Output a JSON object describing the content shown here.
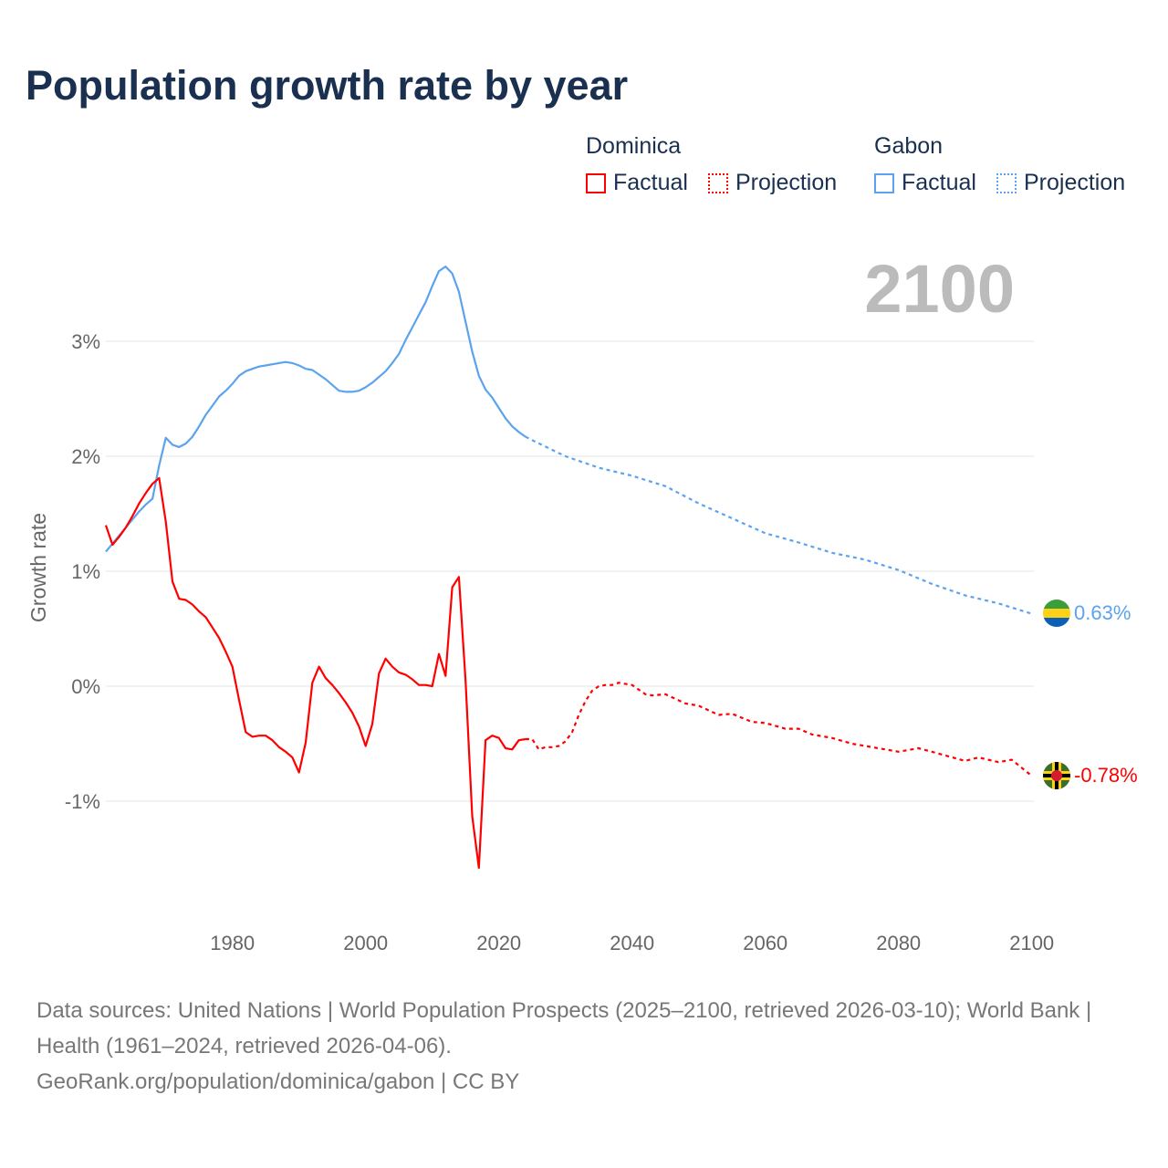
{
  "title": "Population growth rate by year",
  "legend": {
    "groups": [
      {
        "name": "Dominica",
        "factual": "Factual",
        "projection": "Projection",
        "color": "#ff0000"
      },
      {
        "name": "Gabon",
        "factual": "Factual",
        "projection": "Projection",
        "color": "#5ba3ee"
      }
    ]
  },
  "year_label": "2100",
  "footer": {
    "sources": "Data sources: United Nations | World Population Prospects (2025–2100, retrieved 2026-03-10); World Bank | Health (1961–2024, retrieved 2026-04-06).",
    "credit": "GeoRank.org/population/dominica/gabon | CC BY"
  },
  "chart_data": {
    "type": "line",
    "title": "Population growth rate by year",
    "xlabel": "",
    "ylabel": "Growth rate",
    "xlim": [
      1961,
      2100
    ],
    "ylim": [
      -1.9,
      3.8
    ],
    "x_ticks": [
      1980,
      2000,
      2020,
      2040,
      2060,
      2080,
      2100
    ],
    "x_tick_labels": [
      "1980",
      "2000",
      "2020",
      "2040",
      "2060",
      "2080",
      "2100"
    ],
    "y_ticks": [
      3,
      2,
      1,
      0,
      -1
    ],
    "y_tick_labels": [
      "3%",
      "2%",
      "1%",
      "0%",
      "-1%"
    ],
    "grid": true,
    "legend_placement": "top-right",
    "series": [
      {
        "name": "Gabon Factual",
        "color": "#5ba3ee",
        "dashed": false,
        "x": [
          1961,
          1962,
          1963,
          1964,
          1965,
          1966,
          1967,
          1968,
          1969,
          1970,
          1971,
          1972,
          1973,
          1974,
          1975,
          1976,
          1977,
          1978,
          1979,
          1980,
          1981,
          1982,
          1983,
          1984,
          1985,
          1986,
          1987,
          1988,
          1989,
          1990,
          1991,
          1992,
          1993,
          1994,
          1995,
          1996,
          1997,
          1998,
          1999,
          2000,
          2001,
          2002,
          2003,
          2004,
          2005,
          2006,
          2007,
          2008,
          2009,
          2010,
          2011,
          2012,
          2013,
          2014,
          2015,
          2016,
          2017,
          2018,
          2019,
          2020,
          2021,
          2022,
          2023,
          2024
        ],
        "y": [
          1.17,
          1.24,
          1.31,
          1.38,
          1.45,
          1.52,
          1.58,
          1.63,
          1.92,
          2.16,
          2.1,
          2.08,
          2.11,
          2.17,
          2.26,
          2.36,
          2.44,
          2.52,
          2.57,
          2.63,
          2.7,
          2.74,
          2.76,
          2.78,
          2.79,
          2.8,
          2.81,
          2.82,
          2.81,
          2.79,
          2.76,
          2.75,
          2.71,
          2.67,
          2.62,
          2.57,
          2.56,
          2.56,
          2.57,
          2.6,
          2.64,
          2.69,
          2.74,
          2.81,
          2.89,
          3.01,
          3.12,
          3.23,
          3.34,
          3.48,
          3.61,
          3.65,
          3.59,
          3.43,
          3.17,
          2.91,
          2.7,
          2.58,
          2.51,
          2.42,
          2.33,
          2.26,
          2.21,
          2.17
        ]
      },
      {
        "name": "Gabon Projection",
        "color": "#5ba3ee",
        "dashed": true,
        "x": [
          2024,
          2025,
          2030,
          2035,
          2040,
          2045,
          2050,
          2055,
          2060,
          2065,
          2070,
          2075,
          2080,
          2085,
          2090,
          2095,
          2100
        ],
        "y": [
          2.17,
          2.14,
          2.0,
          1.9,
          1.83,
          1.74,
          1.59,
          1.46,
          1.33,
          1.25,
          1.16,
          1.1,
          1.01,
          0.89,
          0.79,
          0.72,
          0.63
        ]
      },
      {
        "name": "Dominica Factual",
        "color": "#ff0000",
        "dashed": false,
        "x": [
          1961,
          1962,
          1963,
          1964,
          1965,
          1966,
          1967,
          1968,
          1969,
          1970,
          1971,
          1972,
          1973,
          1974,
          1975,
          1976,
          1977,
          1978,
          1979,
          1980,
          1981,
          1982,
          1983,
          1984,
          1985,
          1986,
          1987,
          1988,
          1989,
          1990,
          1991,
          1992,
          1993,
          1994,
          1995,
          1996,
          1997,
          1998,
          1999,
          2000,
          2001,
          2002,
          2003,
          2004,
          2005,
          2006,
          2007,
          2008,
          2009,
          2010,
          2011,
          2012,
          2013,
          2014,
          2015,
          2016,
          2017,
          2018,
          2019,
          2020,
          2021,
          2022,
          2023,
          2024
        ],
        "y": [
          1.4,
          1.23,
          1.3,
          1.38,
          1.48,
          1.59,
          1.68,
          1.76,
          1.81,
          1.43,
          0.91,
          0.76,
          0.75,
          0.71,
          0.65,
          0.6,
          0.51,
          0.42,
          0.3,
          0.17,
          -0.12,
          -0.4,
          -0.44,
          -0.43,
          -0.43,
          -0.47,
          -0.53,
          -0.57,
          -0.62,
          -0.75,
          -0.49,
          0.03,
          0.17,
          0.07,
          0.01,
          -0.06,
          -0.14,
          -0.23,
          -0.35,
          -0.52,
          -0.33,
          0.11,
          0.24,
          0.17,
          0.12,
          0.1,
          0.06,
          0.01,
          0.01,
          0.0,
          0.28,
          0.09,
          0.86,
          0.95,
          0.05,
          -1.13,
          -1.58,
          -0.47,
          -0.43,
          -0.45,
          -0.54,
          -0.55,
          -0.47,
          -0.46
        ]
      },
      {
        "name": "Dominica Projection",
        "color": "#ff0000",
        "dashed": true,
        "x": [
          2024,
          2025,
          2026,
          2027,
          2028,
          2029,
          2030,
          2031,
          2032,
          2033,
          2034,
          2035,
          2036,
          2037,
          2038,
          2040,
          2042,
          2043,
          2045,
          2048,
          2050,
          2053,
          2055,
          2058,
          2060,
          2063,
          2065,
          2067,
          2070,
          2073,
          2075,
          2080,
          2083,
          2085,
          2090,
          2092,
          2095,
          2097,
          2100
        ],
        "y": [
          -0.46,
          -0.46,
          -0.55,
          -0.53,
          -0.53,
          -0.52,
          -0.48,
          -0.4,
          -0.25,
          -0.13,
          -0.04,
          0.0,
          0.01,
          0.01,
          0.03,
          0.01,
          -0.07,
          -0.08,
          -0.07,
          -0.15,
          -0.17,
          -0.25,
          -0.24,
          -0.31,
          -0.32,
          -0.37,
          -0.37,
          -0.42,
          -0.45,
          -0.5,
          -0.52,
          -0.57,
          -0.54,
          -0.57,
          -0.65,
          -0.62,
          -0.66,
          -0.64,
          -0.78
        ]
      }
    ],
    "end_labels": [
      {
        "country": "Gabon",
        "value": 0.63,
        "label": "0.63%",
        "color": "#5ba3ee"
      },
      {
        "country": "Dominica",
        "value": -0.78,
        "label": "-0.78%",
        "color": "#ff0000"
      }
    ]
  }
}
